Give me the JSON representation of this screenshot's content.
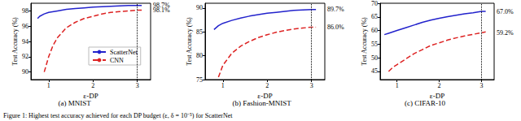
{
  "caption": "Figure 1: Highest test accuracy achieved for each DP budget (ε, δ = 10⁻⁵) for ScatterNet",
  "chart_data": [
    {
      "type": "line",
      "title": "(a) MNIST",
      "x_label": "ε-DP",
      "y_label": "Test Accuracy (%)",
      "xlim": [
        0.6,
        3.3
      ],
      "xticks": [
        1,
        2,
        3
      ],
      "ylim": [
        89,
        99
      ],
      "yticks": [
        90,
        92,
        94,
        96,
        98
      ],
      "grid": false,
      "legend": "lower right",
      "vertical_line": 3,
      "annotations": [
        {
          "y": 98.7,
          "text": "98.7%"
        },
        {
          "y": 98.1,
          "text": "98.1%"
        }
      ],
      "series": [
        {
          "name": "ScatterNet",
          "color": "#2222cc",
          "line_style": "solid",
          "x": [
            0.75,
            0.8,
            0.9,
            1.0,
            1.2,
            1.4,
            1.6,
            1.8,
            2.0,
            2.2,
            2.4,
            2.6,
            2.8,
            3.0,
            3.1
          ],
          "values": [
            97.0,
            97.3,
            97.6,
            97.8,
            98.0,
            98.2,
            98.3,
            98.4,
            98.5,
            98.55,
            98.6,
            98.65,
            98.7,
            98.7,
            98.7
          ]
        },
        {
          "name": "CNN",
          "color": "#dd2222",
          "line_style": "dashed",
          "x": [
            0.9,
            1.0,
            1.1,
            1.2,
            1.4,
            1.6,
            1.8,
            2.0,
            2.2,
            2.4,
            2.6,
            2.8,
            3.0,
            3.1
          ],
          "values": [
            90.0,
            92.0,
            93.5,
            94.5,
            95.8,
            96.5,
            97.0,
            97.3,
            97.6,
            97.8,
            97.9,
            98.0,
            98.1,
            98.1
          ]
        }
      ]
    },
    {
      "type": "line",
      "title": "(b) Fashion-MNIST",
      "x_label": "ε-DP",
      "y_label": "Test Accuracy (%)",
      "xlim": [
        0.6,
        3.3
      ],
      "xticks": [
        1,
        2,
        3
      ],
      "ylim": [
        75,
        91
      ],
      "yticks": [
        75,
        80,
        85,
        90
      ],
      "grid": false,
      "vertical_line": 3,
      "annotations": [
        {
          "y": 89.7,
          "text": "89.7%"
        },
        {
          "y": 86.0,
          "text": "86.0%"
        }
      ],
      "series": [
        {
          "name": "ScatterNet",
          "color": "#2222cc",
          "line_style": "solid",
          "x": [
            0.8,
            0.9,
            1.0,
            1.2,
            1.4,
            1.6,
            1.8,
            2.0,
            2.2,
            2.4,
            2.6,
            2.8,
            3.0,
            3.1
          ],
          "values": [
            85.5,
            86.3,
            86.8,
            87.4,
            87.9,
            88.3,
            88.6,
            88.9,
            89.1,
            89.3,
            89.5,
            89.6,
            89.7,
            89.7
          ]
        },
        {
          "name": "CNN",
          "color": "#dd2222",
          "line_style": "dashed",
          "x": [
            0.9,
            1.0,
            1.2,
            1.4,
            1.6,
            1.8,
            2.0,
            2.2,
            2.4,
            2.6,
            2.8,
            3.0,
            3.1
          ],
          "values": [
            75.5,
            78.0,
            80.5,
            82.0,
            83.0,
            83.8,
            84.4,
            84.9,
            85.3,
            85.6,
            85.8,
            86.0,
            86.0
          ]
        }
      ]
    },
    {
      "type": "line",
      "title": "(c) CIFAR-10",
      "x_label": "ε-DP",
      "y_label": "Test Accuracy (%)",
      "xlim": [
        0.6,
        3.3
      ],
      "xticks": [
        1,
        2,
        3
      ],
      "ylim": [
        42,
        70
      ],
      "yticks": [
        45,
        50,
        55,
        60,
        65,
        70
      ],
      "grid": false,
      "vertical_line": 3,
      "annotations": [
        {
          "y": 67.0,
          "text": "67.0%"
        },
        {
          "y": 59.2,
          "text": "59.2%"
        }
      ],
      "series": [
        {
          "name": "ScatterNet",
          "color": "#2222cc",
          "line_style": "solid",
          "x": [
            0.7,
            0.8,
            1.0,
            1.2,
            1.4,
            1.6,
            1.8,
            2.0,
            2.2,
            2.4,
            2.6,
            2.8,
            3.0,
            3.1
          ],
          "values": [
            58.5,
            59.0,
            60.0,
            61.0,
            62.0,
            63.0,
            63.8,
            64.5,
            65.1,
            65.6,
            66.1,
            66.5,
            67.0,
            67.0
          ]
        },
        {
          "name": "CNN",
          "color": "#dd2222",
          "line_style": "dashed",
          "x": [
            0.8,
            0.9,
            1.0,
            1.2,
            1.4,
            1.6,
            1.8,
            2.0,
            2.2,
            2.4,
            2.6,
            2.8,
            3.0,
            3.1
          ],
          "values": [
            45.0,
            46.5,
            47.5,
            49.5,
            51.5,
            53.0,
            54.5,
            55.5,
            56.5,
            57.3,
            58.0,
            58.6,
            59.2,
            59.5
          ]
        }
      ]
    }
  ]
}
